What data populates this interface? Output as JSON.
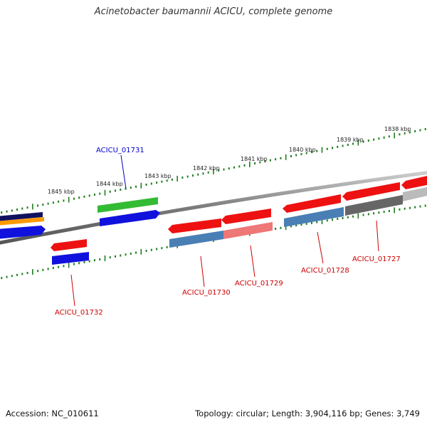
{
  "title": "Acinetobacter baumannii ACICU, complete genome",
  "footer": {
    "accession": "Accession: NC_010611",
    "stats": "Topology: circular; Length: 3,904,116 bp; Genes: 3,749"
  },
  "scale_labels": [
    "1845 kbp",
    "1844 kbp",
    "1843 kbp",
    "1842 kbp",
    "1841 kbp",
    "1840 kbp",
    "1839 kbp",
    "1838 kbp"
  ],
  "gene_labels": [
    "ACICU_01731",
    "ACICU_01732",
    "ACICU_01730",
    "ACICU_01729",
    "ACICU_01728",
    "ACICU_01727"
  ],
  "colors": {
    "genome_line": "#808080",
    "tick_marks": "#1e7d1e",
    "highlight_label": "#0000cc",
    "gene_label": "#cc0000",
    "red_gene": "#ee1111",
    "green_gene": "#33bb33",
    "blue_gene": "#1111dd",
    "steelblue_gene": "#4a7fb5",
    "pink_gene": "#ee7777",
    "gray_gene": "#666666",
    "navy_gene": "#101060",
    "orange_gene": "#ff9900"
  }
}
